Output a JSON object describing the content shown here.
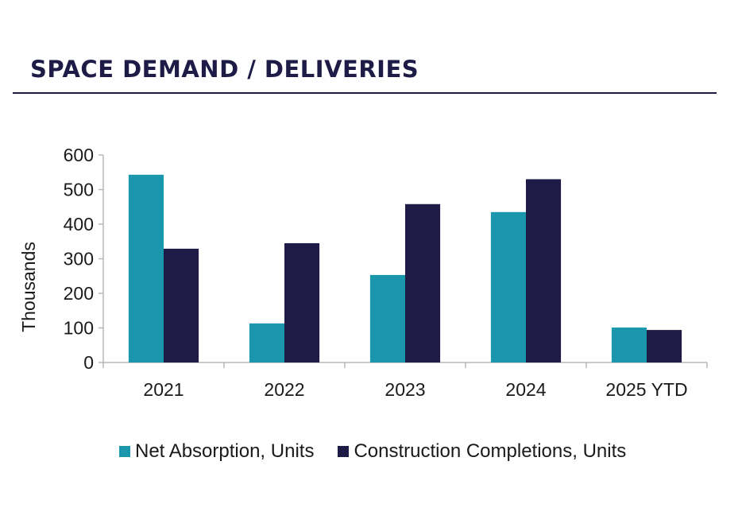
{
  "header": {
    "title": "SPACE DEMAND / DELIVERIES"
  },
  "chart_data": {
    "type": "bar",
    "title": "SPACE DEMAND / DELIVERIES",
    "xlabel": "",
    "ylabel": "Thousands",
    "categories": [
      "2021",
      "2022",
      "2023",
      "2024",
      "2025 YTD"
    ],
    "series": [
      {
        "name": "Net Absorption, Units",
        "color": "#1a96ad",
        "values": [
          543,
          113,
          253,
          435,
          101
        ]
      },
      {
        "name": "Construction Completions, Units",
        "color": "#1e1b47",
        "values": [
          329,
          345,
          458,
          530,
          94
        ]
      }
    ],
    "ylim": [
      0,
      600
    ],
    "yticks": [
      0,
      100,
      200,
      300,
      400,
      500,
      600
    ],
    "grid": false,
    "legend_position": "bottom"
  }
}
